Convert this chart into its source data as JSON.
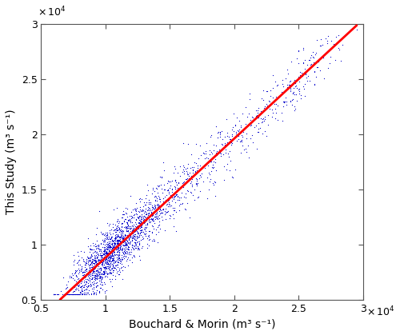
{
  "xlabel": "Bouchard & Morin (m³ s⁻¹)",
  "ylabel": "This Study (m³ s⁻¹)",
  "xlim": [
    5000,
    30000
  ],
  "ylim": [
    5000,
    30000
  ],
  "xticks": [
    5000,
    10000,
    15000,
    20000,
    25000,
    30000
  ],
  "yticks": [
    5000,
    10000,
    15000,
    20000,
    25000,
    30000
  ],
  "xtick_labels": [
    "0.5",
    "1",
    "1.5",
    "2",
    "2.5",
    "3"
  ],
  "ytick_labels": [
    "0.5",
    "1",
    "1.5",
    "2",
    "2.5",
    "3"
  ],
  "scatter_color": "#0000CC",
  "line_color": "#FF0000",
  "line_slope": 1.08,
  "line_intercept": -2000,
  "scatter_seed": 42,
  "n_points": 2200,
  "marker_size": 3,
  "bg_color": "#ffffff",
  "line_x_start": 6500,
  "line_x_end": 29500
}
